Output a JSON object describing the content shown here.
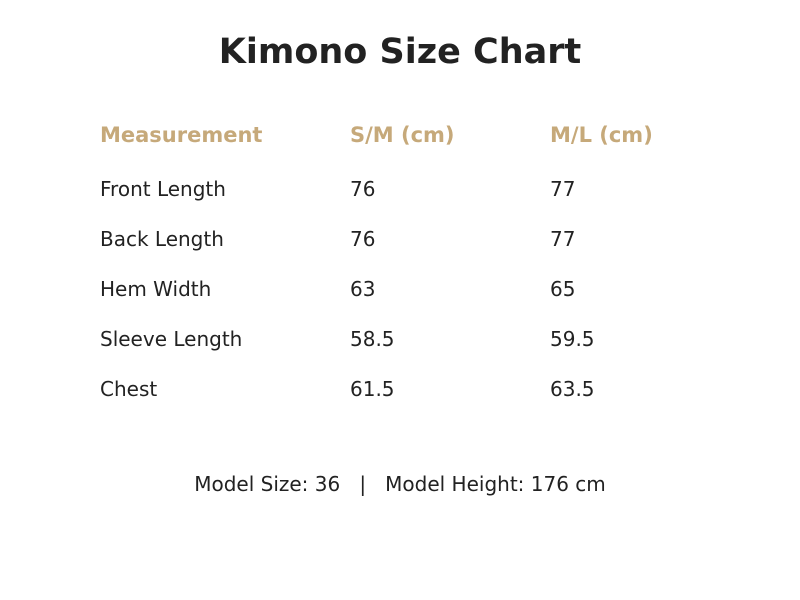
{
  "title": "Kimono Size Chart",
  "colors": {
    "header_text": "#C6A97A",
    "body_text": "#222222"
  },
  "table": {
    "columns": [
      "Measurement",
      "S/M (cm)",
      "M/L (cm)"
    ],
    "rows": [
      [
        "Front Length",
        "76",
        "77"
      ],
      [
        "Back Length",
        "76",
        "77"
      ],
      [
        "Hem Width",
        "63",
        "65"
      ],
      [
        "Sleeve Length",
        "58.5",
        "59.5"
      ],
      [
        "Chest",
        "61.5",
        "63.5"
      ]
    ]
  },
  "footer": {
    "model_size": "Model Size: 36",
    "separator": "|",
    "model_height": "Model Height: 176 cm"
  }
}
